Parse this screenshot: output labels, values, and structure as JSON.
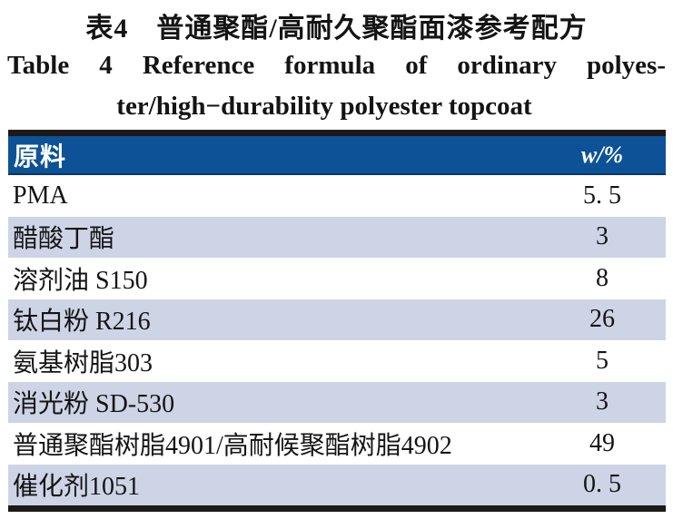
{
  "titles": {
    "zh": "表4　普通聚酯/高耐久聚酯面漆参考配方",
    "en_line1": "Table 4 Reference formula of ordinary polyes-",
    "en_line2": "ter/high−durability polyester topcoat"
  },
  "table": {
    "header": {
      "material": "原料",
      "value": "w/%"
    },
    "rows": [
      {
        "material": "PMA",
        "value": "5. 5"
      },
      {
        "material": "醋酸丁酯",
        "value": "3"
      },
      {
        "material": "溶剂油 S150",
        "value": "8"
      },
      {
        "material": "钛白粉 R216",
        "value": "26"
      },
      {
        "material": "氨基树脂303",
        "value": "5"
      },
      {
        "material": "消光粉 SD-530",
        "value": "3"
      },
      {
        "material": "普通聚酯树脂4901/高耐候聚酯树脂4902",
        "value": "49"
      },
      {
        "material": "催化剂1051",
        "value": "0. 5"
      }
    ],
    "colors": {
      "header_bg": "#0d5296",
      "header_text": "#ffffff",
      "alt_row_bg": "#cdd4e6",
      "row_bg": "#ffffff",
      "rule": "#1c1a18"
    }
  }
}
